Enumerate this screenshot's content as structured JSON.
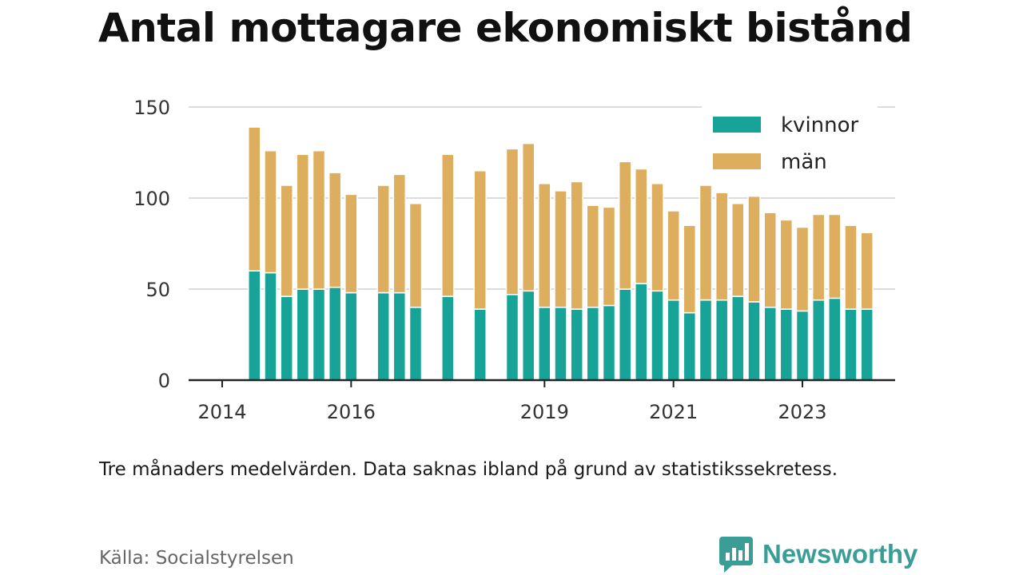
{
  "title": "Antal mottagare ekonomiskt bistånd",
  "caption": "Tre månaders medelvärden. Data saknas ibland på grund av statistikssekretess.",
  "source": "Källa: Socialstyrelsen",
  "brand": {
    "name": "Newsworthy",
    "icon": "newsworthy-logo-icon",
    "color": "#3a9e96"
  },
  "chart_data": {
    "type": "bar",
    "stacked": true,
    "title": "Antal mottagare ekonomiskt bistånd",
    "xlabel": "",
    "ylabel": "",
    "ylim": [
      0,
      150
    ],
    "yticks": [
      0,
      50,
      100,
      150
    ],
    "xticks": [
      "2014",
      "2016",
      "2019",
      "2021",
      "2023"
    ],
    "grid": true,
    "legend_position": "top-right",
    "colors": {
      "kvinnor": "#17a398",
      "män": "#dcae5d"
    },
    "series": [
      {
        "name": "kvinnor",
        "values": [
          60,
          59,
          46,
          50,
          50,
          51,
          48,
          null,
          48,
          48,
          40,
          null,
          46,
          null,
          39,
          null,
          47,
          49,
          40,
          40,
          39,
          40,
          41,
          50,
          53,
          49,
          44,
          37,
          44,
          44,
          46,
          43,
          40,
          39,
          38,
          44,
          45,
          39,
          39
        ]
      },
      {
        "name": "män",
        "values": [
          79,
          67,
          61,
          74,
          76,
          63,
          54,
          null,
          59,
          65,
          57,
          null,
          78,
          null,
          76,
          null,
          80,
          81,
          68,
          64,
          70,
          56,
          54,
          70,
          63,
          59,
          49,
          48,
          63,
          59,
          51,
          58,
          52,
          49,
          46,
          47,
          46,
          46,
          42
        ]
      }
    ],
    "x": [
      2014.5,
      2014.75,
      2015.0,
      2015.25,
      2015.5,
      2015.75,
      2016.0,
      2016.25,
      2016.5,
      2016.75,
      2017.0,
      2017.25,
      2017.5,
      2017.75,
      2018.0,
      2018.25,
      2018.5,
      2018.75,
      2019.0,
      2019.25,
      2019.5,
      2019.75,
      2020.0,
      2020.25,
      2020.5,
      2020.75,
      2021.0,
      2021.25,
      2021.5,
      2021.75,
      2022.0,
      2022.25,
      2022.5,
      2022.75,
      2023.0,
      2023.25,
      2023.5,
      2023.75,
      2024.0
    ]
  }
}
